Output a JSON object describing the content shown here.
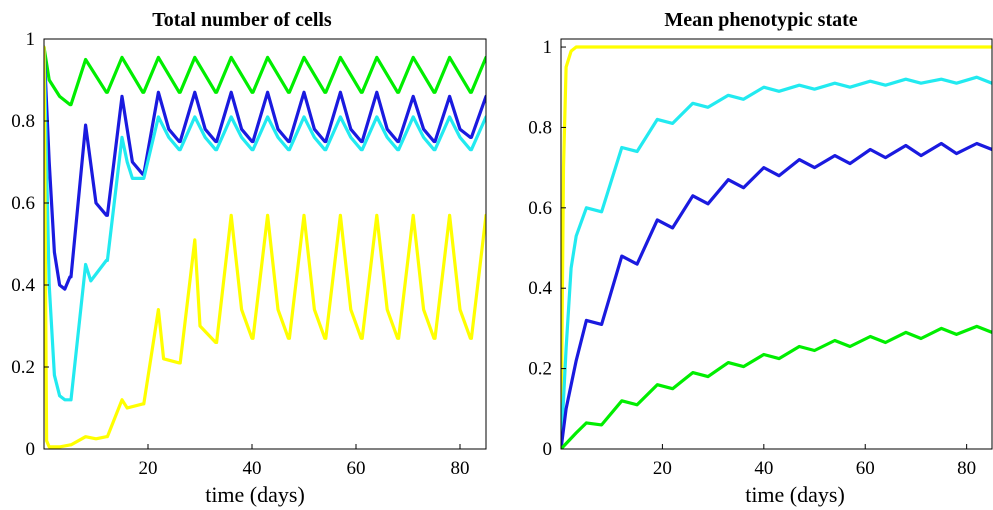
{
  "chart_data": [
    {
      "type": "line",
      "title": "Total number of cells",
      "xlabel": "time (days)",
      "ylabel": "",
      "xlim": [
        0,
        85
      ],
      "ylim": [
        0,
        1
      ],
      "xticks": [
        20,
        40,
        60,
        80
      ],
      "yticks": [
        0,
        0.2,
        0.4,
        0.6,
        0.8,
        1
      ],
      "xtick_labels": [
        "20",
        "40",
        "60",
        "80"
      ],
      "ytick_labels": [
        "0",
        "0.2",
        "0.4",
        "0.6",
        "0.8",
        "1"
      ],
      "grid": false,
      "series": [
        {
          "color": "#00ee00",
          "x": [
            0,
            1,
            3,
            5,
            5.2,
            8,
            12,
            12.2,
            15,
            19,
            19.2,
            22,
            26,
            26.2,
            29,
            33,
            33.2,
            36,
            40,
            40.2,
            43,
            47,
            47.2,
            50,
            54,
            54.2,
            57,
            61,
            61.2,
            64,
            68,
            68.2,
            71,
            75,
            75.2,
            78,
            82,
            82.2,
            85
          ],
          "y": [
            0.98,
            0.9,
            0.86,
            0.84,
            0.84,
            0.95,
            0.87,
            0.87,
            0.955,
            0.87,
            0.87,
            0.955,
            0.87,
            0.87,
            0.955,
            0.87,
            0.87,
            0.955,
            0.87,
            0.87,
            0.955,
            0.87,
            0.87,
            0.955,
            0.87,
            0.87,
            0.955,
            0.87,
            0.87,
            0.955,
            0.87,
            0.87,
            0.955,
            0.87,
            0.87,
            0.955,
            0.87,
            0.87,
            0.955
          ]
        },
        {
          "color": "#1a1adf",
          "x": [
            0,
            1,
            2,
            3,
            4,
            5,
            5.2,
            8,
            10,
            12,
            12.2,
            15,
            17,
            19,
            19.2,
            22,
            24,
            26,
            26.2,
            29,
            31,
            33,
            33.2,
            36,
            38,
            40,
            40.2,
            43,
            45,
            47,
            47.2,
            50,
            52,
            54,
            54.2,
            57,
            59,
            61,
            61.2,
            64,
            66,
            68,
            68.2,
            71,
            73,
            75,
            75.2,
            78,
            80,
            82,
            82.2,
            85
          ],
          "y": [
            0.98,
            0.7,
            0.48,
            0.4,
            0.39,
            0.42,
            0.42,
            0.79,
            0.6,
            0.57,
            0.57,
            0.86,
            0.7,
            0.67,
            0.67,
            0.87,
            0.78,
            0.75,
            0.75,
            0.87,
            0.78,
            0.75,
            0.75,
            0.87,
            0.78,
            0.75,
            0.75,
            0.87,
            0.78,
            0.75,
            0.75,
            0.87,
            0.78,
            0.75,
            0.75,
            0.87,
            0.78,
            0.75,
            0.75,
            0.87,
            0.78,
            0.75,
            0.75,
            0.86,
            0.78,
            0.75,
            0.75,
            0.86,
            0.78,
            0.76,
            0.76,
            0.86
          ]
        },
        {
          "color": "#22eaf0",
          "x": [
            0,
            1,
            2,
            3,
            4,
            5,
            5.2,
            8,
            9,
            12,
            12.2,
            15,
            16,
            17,
            19,
            19.2,
            22,
            24,
            26,
            26.2,
            29,
            31,
            33,
            33.2,
            36,
            38,
            40,
            40.2,
            43,
            45,
            47,
            47.2,
            50,
            52,
            54,
            54.2,
            57,
            59,
            61,
            61.2,
            64,
            66,
            68,
            68.2,
            71,
            73,
            75,
            75.2,
            78,
            80,
            82,
            82.2,
            85
          ],
          "y": [
            0.98,
            0.4,
            0.18,
            0.13,
            0.12,
            0.12,
            0.12,
            0.45,
            0.41,
            0.46,
            0.46,
            0.76,
            0.7,
            0.66,
            0.66,
            0.66,
            0.81,
            0.76,
            0.73,
            0.73,
            0.81,
            0.76,
            0.73,
            0.73,
            0.81,
            0.76,
            0.73,
            0.73,
            0.81,
            0.76,
            0.73,
            0.73,
            0.81,
            0.76,
            0.73,
            0.73,
            0.81,
            0.76,
            0.73,
            0.73,
            0.81,
            0.76,
            0.73,
            0.73,
            0.81,
            0.76,
            0.73,
            0.73,
            0.81,
            0.76,
            0.73,
            0.73,
            0.81
          ]
        },
        {
          "color": "#ffff00",
          "x": [
            0,
            0.5,
            1,
            3,
            5,
            5.2,
            8,
            10,
            12,
            12.2,
            15,
            16,
            19,
            19.2,
            22,
            23,
            26,
            26.2,
            29,
            30,
            33,
            33.2,
            36,
            38,
            40,
            40.2,
            43,
            45,
            47,
            47.2,
            50,
            52,
            54,
            54.2,
            57,
            59,
            61,
            61.2,
            64,
            66,
            68,
            68.2,
            71,
            73,
            75,
            75.2,
            78,
            80,
            82,
            82.2,
            85
          ],
          "y": [
            0.98,
            0.02,
            0.005,
            0.005,
            0.01,
            0.01,
            0.03,
            0.025,
            0.03,
            0.03,
            0.12,
            0.1,
            0.11,
            0.11,
            0.34,
            0.22,
            0.21,
            0.21,
            0.51,
            0.3,
            0.26,
            0.26,
            0.57,
            0.34,
            0.27,
            0.27,
            0.57,
            0.34,
            0.27,
            0.27,
            0.57,
            0.34,
            0.27,
            0.27,
            0.57,
            0.34,
            0.27,
            0.27,
            0.57,
            0.34,
            0.27,
            0.27,
            0.57,
            0.34,
            0.27,
            0.27,
            0.57,
            0.34,
            0.27,
            0.27,
            0.57
          ]
        }
      ]
    },
    {
      "type": "line",
      "title": "Mean phenotypic state",
      "xlabel": "time (days)",
      "ylabel": "",
      "xlim": [
        0,
        85
      ],
      "ylim": [
        0,
        1.02
      ],
      "xticks": [
        20,
        40,
        60,
        80
      ],
      "yticks": [
        0,
        0.2,
        0.4,
        0.6,
        0.8,
        1
      ],
      "xtick_labels": [
        "20",
        "40",
        "60",
        "80"
      ],
      "ytick_labels": [
        "0",
        "0.2",
        "0.4",
        "0.6",
        "0.8",
        "1"
      ],
      "grid": false,
      "series": [
        {
          "color": "#ffff00",
          "x": [
            0,
            0.5,
            1,
            2,
            3,
            85
          ],
          "y": [
            0,
            0.7,
            0.95,
            0.99,
            1.0,
            1.0
          ]
        },
        {
          "color": "#22eaf0",
          "x": [
            0,
            1,
            2,
            3,
            5,
            8,
            12,
            15,
            19,
            22,
            26,
            29,
            33,
            36,
            40,
            43,
            47,
            50,
            54,
            57,
            61,
            64,
            68,
            71,
            75,
            78,
            82,
            85
          ],
          "y": [
            0,
            0.25,
            0.45,
            0.53,
            0.6,
            0.59,
            0.75,
            0.74,
            0.82,
            0.81,
            0.86,
            0.85,
            0.88,
            0.87,
            0.9,
            0.89,
            0.905,
            0.895,
            0.91,
            0.9,
            0.915,
            0.905,
            0.92,
            0.91,
            0.92,
            0.91,
            0.925,
            0.91
          ]
        },
        {
          "color": "#1a1adf",
          "x": [
            0,
            1,
            3,
            5,
            8,
            12,
            15,
            19,
            22,
            26,
            29,
            33,
            36,
            40,
            43,
            47,
            50,
            54,
            57,
            61,
            64,
            68,
            71,
            75,
            78,
            82,
            85
          ],
          "y": [
            0,
            0.1,
            0.22,
            0.32,
            0.31,
            0.48,
            0.46,
            0.57,
            0.55,
            0.63,
            0.61,
            0.67,
            0.65,
            0.7,
            0.68,
            0.72,
            0.7,
            0.73,
            0.71,
            0.745,
            0.725,
            0.755,
            0.73,
            0.76,
            0.735,
            0.76,
            0.745
          ]
        },
        {
          "color": "#00ee00",
          "x": [
            0,
            3,
            5,
            8,
            12,
            15,
            19,
            22,
            26,
            29,
            33,
            36,
            40,
            43,
            47,
            50,
            54,
            57,
            61,
            64,
            68,
            71,
            75,
            78,
            82,
            85
          ],
          "y": [
            0,
            0.04,
            0.065,
            0.06,
            0.12,
            0.11,
            0.16,
            0.15,
            0.19,
            0.18,
            0.215,
            0.205,
            0.235,
            0.225,
            0.255,
            0.245,
            0.27,
            0.255,
            0.28,
            0.265,
            0.29,
            0.275,
            0.3,
            0.285,
            0.305,
            0.29
          ]
        }
      ]
    }
  ]
}
